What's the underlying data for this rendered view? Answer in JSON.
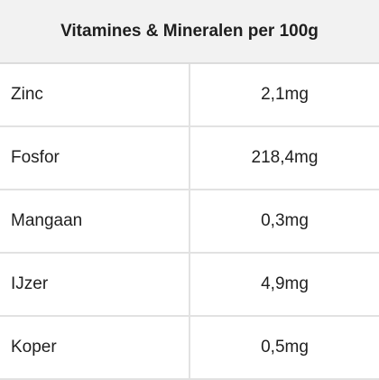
{
  "table": {
    "title": "Vitamines & Mineralen per 100g",
    "rows": [
      [
        "Zinc",
        "2,1mg"
      ],
      [
        "Fosfor",
        "218,4mg"
      ],
      [
        "Mangaan",
        "0,3mg"
      ],
      [
        "IJzer",
        "4,9mg"
      ],
      [
        "Koper",
        "0,5mg"
      ]
    ]
  }
}
